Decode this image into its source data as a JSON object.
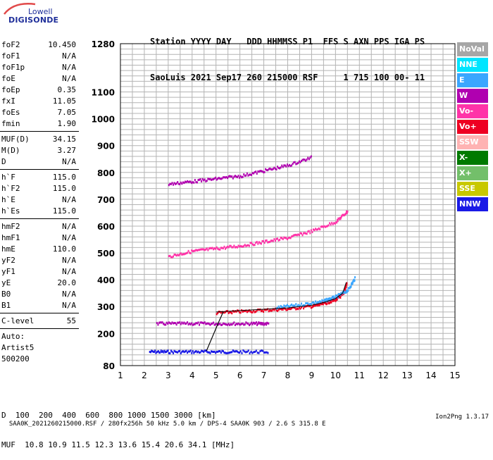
{
  "logo": {
    "top": "Lowell",
    "bottom": "DIGISONDE"
  },
  "header": {
    "line1": "Station YYYY DAY   DDD HHMMSS P1  FFS S AXN PPS IGA PS",
    "line2": "SaoLuis 2021 Sep17 260 215000 RSF     1 715 100 00- 11"
  },
  "params": [
    {
      "name": "foF2",
      "value": "10.450"
    },
    {
      "name": "foF1",
      "value": "N/A"
    },
    {
      "name": "foF1p",
      "value": "N/A"
    },
    {
      "name": "foE",
      "value": "N/A"
    },
    {
      "name": "foEp",
      "value": "0.35"
    },
    {
      "name": "fxI",
      "value": "11.05"
    },
    {
      "name": "foEs",
      "value": "7.05"
    },
    {
      "name": "fmin",
      "value": "1.90"
    },
    {
      "name": "MUF(D)",
      "value": "34.15"
    },
    {
      "name": "M(D)",
      "value": "3.27"
    },
    {
      "name": "D",
      "value": "N/A"
    },
    {
      "name": "h`F",
      "value": "115.0"
    },
    {
      "name": "h`F2",
      "value": "115.0"
    },
    {
      "name": "h`E",
      "value": "N/A"
    },
    {
      "name": "h`Es",
      "value": "115.0"
    },
    {
      "name": "hmF2",
      "value": "N/A"
    },
    {
      "name": "hmF1",
      "value": "N/A"
    },
    {
      "name": "hmE",
      "value": "110.0"
    },
    {
      "name": "yF2",
      "value": "N/A"
    },
    {
      "name": "yF1",
      "value": "N/A"
    },
    {
      "name": "yE",
      "value": "20.0"
    },
    {
      "name": "B0",
      "value": "N/A"
    },
    {
      "name": "B1",
      "value": "N/A"
    },
    {
      "name": "C-level",
      "value": "55"
    }
  ],
  "auto": {
    "label": "Auto:",
    "artist": "Artist5",
    "version": "500200"
  },
  "legend": [
    {
      "name": "NoVal",
      "color": "#a6a6a6"
    },
    {
      "name": "NNE",
      "color": "#00e5ff"
    },
    {
      "name": "E",
      "color": "#3aa6ff"
    },
    {
      "name": "W",
      "color": "#b000b0"
    },
    {
      "name": "Vo-",
      "color": "#ff33a8"
    },
    {
      "name": "Vo+",
      "color": "#ee0022"
    },
    {
      "name": "SSW",
      "color": "#ffb3b3"
    },
    {
      "name": "X-",
      "color": "#007a00"
    },
    {
      "name": "X+",
      "color": "#73bf6a"
    },
    {
      "name": "SSE",
      "color": "#c8c800"
    },
    {
      "name": "NNW",
      "color": "#1a1ae6"
    }
  ],
  "muf_table": {
    "d_label": "D",
    "d_values": "  100  200  400  600  800 1000 1500 3000 [km]",
    "muf_label": "MUF",
    "muf_values": "10.8 10.9 11.5 12.3 13.6 15.4 20.6 34.1 [MHz]"
  },
  "footer": {
    "left": "SAA0K_2021260215000.RSF / 280fx256h 50 kHz 5.0 km / DPS-4 SAA0K 903 / 2.6 S 315.8 E",
    "right": "Ion2Png 1.3.17"
  },
  "chart_data": {
    "type": "scatter",
    "xlabel": "",
    "ylabel": "",
    "xlim": [
      1,
      15
    ],
    "ylim": [
      80,
      1280
    ],
    "x_ticks": [
      1,
      2,
      3,
      4,
      5,
      6,
      7,
      8,
      9,
      10,
      11,
      12,
      13,
      14,
      15
    ],
    "y_ticks": [
      80,
      200,
      300,
      400,
      500,
      600,
      700,
      800,
      900,
      1000,
      1100,
      1280
    ],
    "grid": true,
    "echo_traces": [
      {
        "name": "Es",
        "color": "#1a1ae6",
        "x": [
          2.2,
          3.0,
          4.0,
          5.0,
          6.0,
          7.2
        ],
        "y": [
          135,
          135,
          135,
          135,
          135,
          135
        ]
      },
      {
        "name": "Es",
        "color": "#b000b0",
        "x": [
          2.5,
          3.5,
          4.5,
          5.5,
          6.5,
          7.2
        ],
        "y": [
          240,
          240,
          240,
          240,
          240,
          240
        ]
      },
      {
        "name": "F2 O-trace",
        "color": "#ee0022",
        "x": [
          5.0,
          6.0,
          7.0,
          8.0,
          9.0,
          9.5,
          10.0,
          10.3,
          10.45
        ],
        "y": [
          280,
          285,
          290,
          295,
          305,
          315,
          330,
          350,
          390
        ]
      },
      {
        "name": "F2 X-trace",
        "color": "#3aa6ff",
        "x": [
          7.5,
          8.5,
          9.5,
          10.0,
          10.5,
          10.8
        ],
        "y": [
          300,
          310,
          325,
          340,
          365,
          410
        ]
      },
      {
        "name": "multi-hop",
        "color": "#ff33a8",
        "x": [
          3.0,
          4.0,
          5.0,
          6.0,
          7.0,
          8.0,
          9.0,
          10.0,
          10.5
        ],
        "y": [
          490,
          510,
          520,
          530,
          545,
          560,
          585,
          620,
          660
        ]
      },
      {
        "name": "multi-hop",
        "color": "#b000b0",
        "x": [
          3.0,
          4.0,
          5.0,
          6.0,
          7.0,
          8.0,
          9.0
        ],
        "y": [
          760,
          770,
          780,
          790,
          810,
          830,
          860
        ]
      }
    ],
    "profile_line": {
      "x": [
        4.6,
        5.1,
        5.3
      ],
      "y": [
        135,
        240,
        280
      ]
    }
  }
}
